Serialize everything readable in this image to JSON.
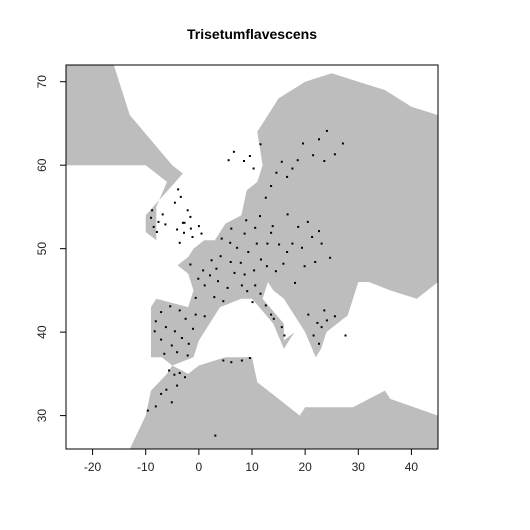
{
  "chart_data": {
    "type": "scatter",
    "title": "Trisetumflavescens",
    "xlabel": "",
    "ylabel": "",
    "xlim": [
      -25,
      45
    ],
    "ylim": [
      26,
      72
    ],
    "x_ticks": [
      -20,
      -10,
      0,
      10,
      20,
      30,
      40
    ],
    "y_ticks": [
      30,
      40,
      50,
      60,
      70
    ],
    "x_tick_labels": [
      "-20",
      "-10",
      "0",
      "10",
      "20",
      "30",
      "40"
    ],
    "y_tick_labels": [
      "30",
      "40",
      "50",
      "60",
      "70"
    ],
    "grid": false,
    "legend": "none",
    "colors": {
      "land": "#bdbdbd",
      "sea": "#ffffff",
      "points": "#000000",
      "frame": "#000000"
    },
    "land_outline": [
      [
        -25,
        72
      ],
      [
        -16,
        72
      ],
      [
        -13,
        66
      ],
      [
        -5,
        60
      ],
      [
        -3,
        59
      ],
      [
        -10,
        54
      ],
      [
        -10,
        52
      ],
      [
        -8,
        51
      ],
      [
        -5,
        50
      ],
      [
        -1,
        50
      ],
      [
        1,
        51
      ],
      [
        3,
        51
      ],
      [
        5,
        53
      ],
      [
        8,
        54
      ],
      [
        9,
        57
      ],
      [
        11,
        58
      ],
      [
        12,
        60
      ],
      [
        11,
        64
      ],
      [
        15,
        68
      ],
      [
        20,
        70
      ],
      [
        25,
        71
      ],
      [
        30,
        70
      ],
      [
        35,
        69
      ],
      [
        40,
        67
      ],
      [
        45,
        66
      ],
      [
        45,
        46
      ],
      [
        41,
        44
      ],
      [
        36,
        45
      ],
      [
        32,
        46
      ],
      [
        30,
        46
      ],
      [
        29,
        44
      ],
      [
        28,
        42
      ],
      [
        26,
        41
      ],
      [
        24,
        40
      ],
      [
        23,
        38
      ],
      [
        22,
        37
      ],
      [
        20,
        40
      ],
      [
        19,
        41
      ],
      [
        16,
        44
      ],
      [
        14,
        45
      ],
      [
        13,
        46
      ],
      [
        12,
        44
      ],
      [
        16,
        41
      ],
      [
        16,
        39
      ],
      [
        18,
        40
      ],
      [
        16,
        38
      ],
      [
        14,
        41
      ],
      [
        10,
        44
      ],
      [
        8,
        44
      ],
      [
        4,
        43
      ],
      [
        3,
        42
      ],
      [
        0,
        39
      ],
      [
        -1,
        37
      ],
      [
        -5,
        36
      ],
      [
        -7,
        37
      ],
      [
        -9,
        37
      ],
      [
        -9,
        43
      ],
      [
        -8,
        44
      ],
      [
        -2,
        43
      ],
      [
        -1,
        45
      ],
      [
        -2,
        47
      ],
      [
        -4,
        48
      ],
      [
        -2,
        49
      ],
      [
        -1,
        50
      ],
      [
        -5,
        50
      ],
      [
        -8,
        51
      ],
      [
        -8,
        55
      ],
      [
        -6,
        58
      ],
      [
        -10,
        60
      ],
      [
        -25,
        60
      ]
    ],
    "africa_outline": [
      [
        -9,
        26
      ],
      [
        45,
        26
      ],
      [
        45,
        30
      ],
      [
        36,
        32
      ],
      [
        35,
        33
      ],
      [
        29,
        31
      ],
      [
        20,
        31
      ],
      [
        19,
        30
      ],
      [
        15,
        32
      ],
      [
        11,
        34
      ],
      [
        10,
        37
      ],
      [
        5,
        37
      ],
      [
        0,
        36
      ],
      [
        -2,
        35
      ],
      [
        -5,
        36
      ],
      [
        -6,
        35
      ],
      [
        -9,
        33
      ],
      [
        -10,
        30
      ],
      [
        -13,
        26
      ]
    ],
    "points": [
      [
        -3,
        53.1
      ],
      [
        -1.6,
        53.8
      ],
      [
        -2.8,
        51.9
      ],
      [
        0,
        52.7
      ],
      [
        -1.2,
        51.4
      ],
      [
        -4.1,
        52.3
      ],
      [
        -2.1,
        54.6
      ],
      [
        -3.4,
        56.2
      ],
      [
        -4.5,
        55.5
      ],
      [
        -3.9,
        57.1
      ],
      [
        -2.7,
        53.1
      ],
      [
        -1.5,
        52.4
      ],
      [
        0.5,
        51.8
      ],
      [
        -3.6,
        50.7
      ],
      [
        -7.6,
        53.2
      ],
      [
        -8.5,
        52.6
      ],
      [
        -6.8,
        54.1
      ],
      [
        -9,
        53.7
      ],
      [
        -7.9,
        52
      ],
      [
        -6.3,
        52.9
      ],
      [
        -8.8,
        54.6
      ],
      [
        2.4,
        48.6
      ],
      [
        0.8,
        47.4
      ],
      [
        4.1,
        49.1
      ],
      [
        -1.6,
        48.1
      ],
      [
        3.6,
        46.1
      ],
      [
        1.1,
        45.6
      ],
      [
        2.9,
        44.2
      ],
      [
        5.4,
        45.3
      ],
      [
        -0.6,
        44.1
      ],
      [
        4.6,
        43.7
      ],
      [
        2.1,
        46.8
      ],
      [
        6,
        48.4
      ],
      [
        3.3,
        47.6
      ],
      [
        -0.1,
        46.4
      ],
      [
        5.9,
        50.7
      ],
      [
        4.3,
        51.2
      ],
      [
        7.2,
        50.1
      ],
      [
        8.6,
        51.8
      ],
      [
        6.1,
        52.4
      ],
      [
        9.3,
        49.6
      ],
      [
        10.9,
        50.6
      ],
      [
        7.9,
        48.3
      ],
      [
        11.7,
        48.7
      ],
      [
        12.9,
        50.6
      ],
      [
        13.6,
        51.9
      ],
      [
        10.6,
        52.5
      ],
      [
        8.9,
        53.4
      ],
      [
        11.5,
        53.9
      ],
      [
        13.9,
        52.7
      ],
      [
        6.7,
        47.1
      ],
      [
        8.6,
        46.9
      ],
      [
        10.4,
        47.4
      ],
      [
        12.8,
        47.9
      ],
      [
        14.5,
        47.3
      ],
      [
        15.9,
        48.2
      ],
      [
        16.6,
        49.6
      ],
      [
        15.1,
        50.5
      ],
      [
        17.6,
        50.6
      ],
      [
        19.4,
        50.1
      ],
      [
        21.3,
        51.4
      ],
      [
        18.7,
        52.6
      ],
      [
        20.5,
        53.2
      ],
      [
        16.7,
        54.1
      ],
      [
        22.6,
        52.1
      ],
      [
        23.1,
        50.6
      ],
      [
        19.9,
        47.9
      ],
      [
        21.9,
        48.4
      ],
      [
        24.7,
        48.9
      ],
      [
        18.1,
        45.9
      ],
      [
        -3.6,
        42.6
      ],
      [
        -5.4,
        43.1
      ],
      [
        -7.1,
        42.4
      ],
      [
        -8.1,
        41.3
      ],
      [
        -6.2,
        40.6
      ],
      [
        -4.5,
        40.1
      ],
      [
        -2.5,
        41.6
      ],
      [
        -0.6,
        42.1
      ],
      [
        1.1,
        41.9
      ],
      [
        -3.2,
        39.3
      ],
      [
        -5.1,
        38.4
      ],
      [
        -1.9,
        38.6
      ],
      [
        -7.1,
        39.1
      ],
      [
        -4.1,
        37.6
      ],
      [
        -6.5,
        37.4
      ],
      [
        -2.1,
        37.2
      ],
      [
        -8.3,
        40.1
      ],
      [
        -1.1,
        40.4
      ],
      [
        10.6,
        45.6
      ],
      [
        11.6,
        44.6
      ],
      [
        12.6,
        43.2
      ],
      [
        13.6,
        42.1
      ],
      [
        15.6,
        40.6
      ],
      [
        9.1,
        44.9
      ],
      [
        8.1,
        45.6
      ],
      [
        10.1,
        43.6
      ],
      [
        14.1,
        41.6
      ],
      [
        16.1,
        39.6
      ],
      [
        10.3,
        59.6
      ],
      [
        9.6,
        61.1
      ],
      [
        11.6,
        62.5
      ],
      [
        8.5,
        60.5
      ],
      [
        13.6,
        57.5
      ],
      [
        14.6,
        59.1
      ],
      [
        15.6,
        60.4
      ],
      [
        16.6,
        58.6
      ],
      [
        17.6,
        59.6
      ],
      [
        12.6,
        56.1
      ],
      [
        18.6,
        60.6
      ],
      [
        19.6,
        62.6
      ],
      [
        5.6,
        60.6
      ],
      [
        6.6,
        61.6
      ],
      [
        21.5,
        61.2
      ],
      [
        23.6,
        60.5
      ],
      [
        25.6,
        61.3
      ],
      [
        27.1,
        62.6
      ],
      [
        22.6,
        63.1
      ],
      [
        24.1,
        64.1
      ],
      [
        22.3,
        41.1
      ],
      [
        23.1,
        40.6
      ],
      [
        24.1,
        41.4
      ],
      [
        25.6,
        41.9
      ],
      [
        21.6,
        39.6
      ],
      [
        22.6,
        38.6
      ],
      [
        20.6,
        42.1
      ],
      [
        27.6,
        39.6
      ],
      [
        23.6,
        42.6
      ],
      [
        -5.6,
        35.4
      ],
      [
        -4.6,
        34.9
      ],
      [
        -3.6,
        35.1
      ],
      [
        -2.6,
        34.6
      ],
      [
        -4.1,
        33.6
      ],
      [
        -6.1,
        33.1
      ],
      [
        -7.1,
        32.6
      ],
      [
        -5.1,
        31.6
      ],
      [
        -9.6,
        30.6
      ],
      [
        -8.1,
        31.1
      ],
      [
        4.6,
        36.6
      ],
      [
        6.1,
        36.4
      ],
      [
        8.1,
        36.6
      ],
      [
        9.6,
        36.9
      ],
      [
        3.1,
        27.6
      ]
    ]
  }
}
